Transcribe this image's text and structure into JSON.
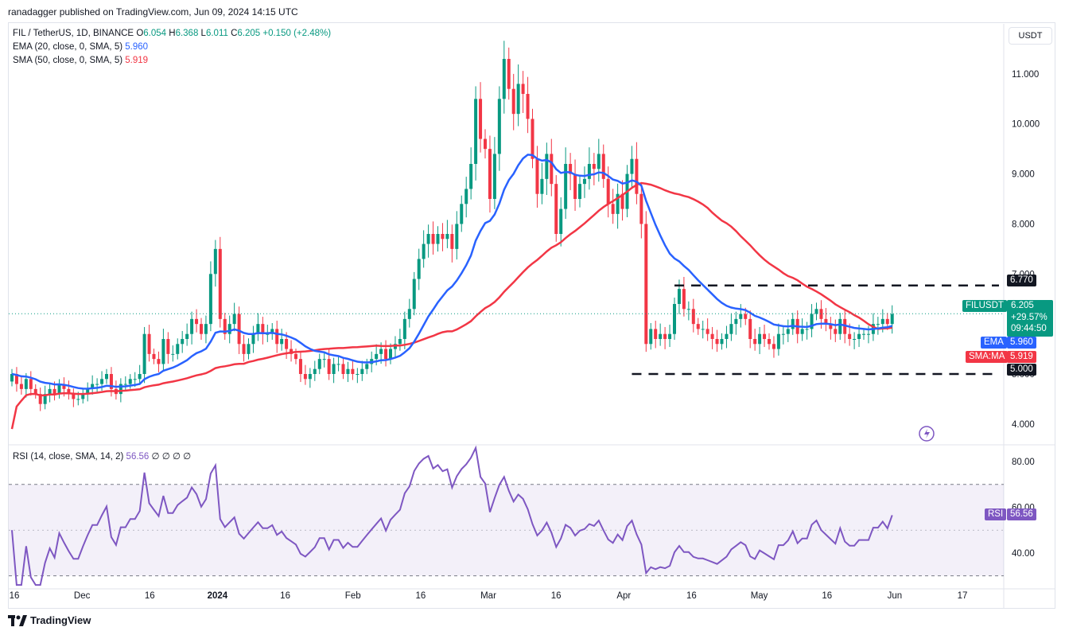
{
  "header": {
    "publisher": "ranadagger published on TradingView.com, Jun 09, 2024 14:15 UTC"
  },
  "legend": {
    "symbol": "FIL / TetherUS, 1D, BINANCE",
    "ohlc": [
      {
        "k": "O",
        "v": "6.054"
      },
      {
        "k": "H",
        "v": "6.368"
      },
      {
        "k": "L",
        "v": "6.011"
      },
      {
        "k": "C",
        "v": "6.205"
      }
    ],
    "change": "+0.150 (+2.48%)",
    "ema_label": "EMA (20, close, 0, SMA, 5)",
    "ema_value": "5.960",
    "sma_label": "SMA (50, close, 0, SMA, 5)",
    "sma_value": "5.919",
    "rsi_label": "RSI (14, close, SMA, 14, 2)",
    "rsi_value": "56.56",
    "rsi_extra": "∅ ∅ ∅ ∅"
  },
  "axis": {
    "unit": "USDT"
  },
  "tags": {
    "resistance": "6.770",
    "support": "5.000",
    "symbol": "FILUSDT",
    "price": "6.205",
    "pct": "+29.57%",
    "countdown": "09:44:50",
    "ema_name": "EMA",
    "ema_val": "5.960",
    "sma_name": "SMA:MA",
    "sma_val": "5.919",
    "rsi_name": "RSI",
    "rsi_val": "56.56"
  },
  "footer": {
    "brand": "TradingView"
  },
  "colors": {
    "up": "#089981",
    "down": "#f23645",
    "ema": "#2962ff",
    "sma": "#f23645",
    "rsi": "#7e57c2",
    "level": "#131722"
  },
  "chart_data": {
    "type": "candlestick",
    "price_ylim": [
      3.6,
      12.0
    ],
    "price_ticks": [
      "4.000",
      "5.000",
      "6.000",
      "7.000",
      "8.000",
      "9.000",
      "10.000",
      "11.000"
    ],
    "x_ticks": [
      "16",
      "Dec",
      "16",
      "2024",
      "16",
      "Feb",
      "16",
      "Mar",
      "16",
      "Apr",
      "16",
      "May",
      "16",
      "Jun",
      "17"
    ],
    "rsi_ylim": [
      25,
      87
    ],
    "rsi_ticks": [
      "40.00",
      "60.00",
      "80.00"
    ],
    "rsi_band": [
      30,
      70
    ],
    "levels": [
      6.77,
      5.0
    ],
    "close": [
      5.0,
      4.8,
      4.7,
      4.9,
      4.7,
      4.6,
      4.4,
      4.6,
      4.7,
      4.6,
      4.8,
      4.7,
      4.6,
      4.5,
      4.5,
      4.6,
      4.7,
      4.8,
      4.8,
      4.9,
      5.0,
      4.7,
      4.6,
      4.8,
      4.8,
      4.9,
      4.9,
      5.0,
      5.8,
      5.4,
      5.3,
      5.2,
      5.7,
      5.4,
      5.4,
      5.6,
      5.7,
      5.8,
      6.1,
      6.0,
      5.8,
      6.0,
      7.0,
      7.5,
      6.1,
      5.8,
      6.0,
      6.2,
      5.6,
      5.4,
      5.6,
      5.8,
      6.0,
      5.8,
      5.8,
      5.9,
      5.6,
      5.7,
      5.5,
      5.4,
      5.3,
      5.0,
      4.9,
      5.0,
      5.1,
      5.3,
      5.3,
      5.0,
      5.2,
      5.2,
      5.0,
      5.1,
      5.0,
      5.0,
      5.1,
      5.2,
      5.3,
      5.4,
      5.5,
      5.3,
      5.5,
      5.6,
      5.7,
      6.1,
      6.3,
      6.9,
      7.3,
      7.6,
      7.8,
      7.6,
      7.8,
      7.7,
      7.8,
      7.5,
      8.0,
      8.4,
      8.7,
      9.2,
      10.5,
      9.7,
      9.5,
      8.5,
      9.4,
      10.5,
      11.3,
      10.7,
      10.2,
      10.8,
      10.6,
      10.1,
      9.3,
      8.6,
      8.9,
      9.4,
      8.8,
      7.8,
      8.3,
      9.2,
      9.0,
      8.5,
      8.8,
      8.9,
      9.2,
      9.1,
      9.4,
      8.9,
      8.4,
      8.2,
      8.6,
      8.3,
      9.0,
      9.3,
      8.6,
      8.0,
      5.6,
      5.9,
      5.7,
      5.8,
      5.7,
      5.8,
      6.4,
      6.7,
      6.3,
      6.3,
      6.0,
      5.9,
      5.9,
      5.8,
      5.7,
      5.6,
      5.7,
      5.8,
      6.0,
      6.1,
      6.2,
      6.1,
      5.7,
      5.6,
      5.8,
      5.7,
      5.6,
      5.5,
      5.8,
      5.8,
      5.9,
      6.1,
      5.8,
      5.9,
      5.9,
      6.2,
      6.3,
      6.1,
      6.0,
      5.9,
      5.8,
      6.1,
      5.8,
      5.7,
      5.7,
      5.8,
      5.8,
      5.8,
      6.0,
      6.0,
      6.1,
      6.0,
      6.2
    ],
    "ema20_last": 5.96,
    "sma50_last": 5.919,
    "rsi_last": 56.56
  }
}
